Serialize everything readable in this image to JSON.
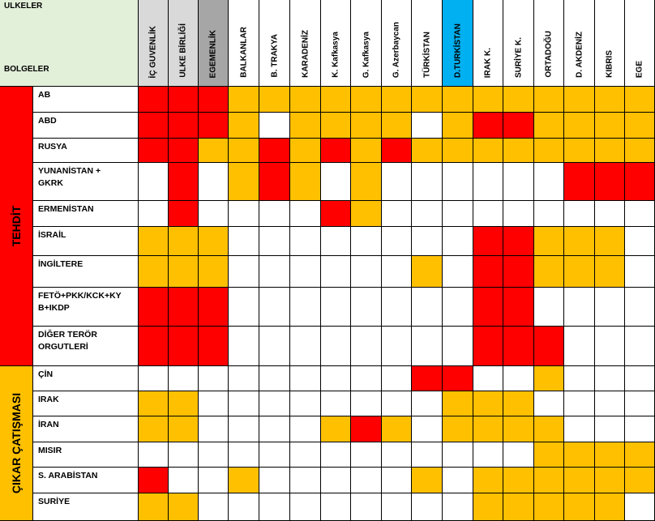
{
  "corner": {
    "top_label": "ULKELER",
    "bottom_label": "BOLGELER"
  },
  "colors": {
    "threat": "#ff0000",
    "interest": "#ffc000",
    "none": "#ffffff",
    "corner_bg": "#e2efd9",
    "grey_header": "#d9d9d9",
    "grey_header_dark": "#a6a6a6",
    "highlight_header": "#00b0f0"
  },
  "columns": [
    "İÇ GUVENLİK",
    "ULKE BİRLİĞİ",
    "EGEMENLİK",
    "BALKANLAR",
    "B. TRAKYA",
    "KARADENİZ",
    "K. Kafkasya",
    "G. Kafkasya",
    "G. Azerbaycan",
    "TÜRKİSTAN",
    "D.TURKİSTAN",
    "IRAK K.",
    "SURİYE K.",
    "ORTADOĞU",
    "D. AKDENİZ",
    "KIBRIS",
    "EGE"
  ],
  "groups": [
    {
      "label": "TEHDİT",
      "color": "red"
    },
    {
      "label": "ÇIKAR ÇATIŞMASI",
      "color": "orange"
    }
  ],
  "rows": [
    {
      "name": "AB",
      "cells": "RRRoooooooooooooo"
    },
    {
      "name": "ABD",
      "cells": "RRRo.oooo.oRRoooo"
    },
    {
      "name": "RUSYA",
      "cells": "RRooRoRoRoooooooo"
    },
    {
      "name": "YUNANİSTAN +\nGKRK",
      "cells": ".R.oRo.o......RRR"
    },
    {
      "name": "ERMENİSTAN",
      "cells": ".R....Ro........."
    },
    {
      "name": "İSRAİL",
      "cells": "ooo........RRooo."
    },
    {
      "name": "İNGİLTERE",
      "cells": "ooo......o.RRooo."
    },
    {
      "name": "FETÖ+PKK/KCK+KY\nB+IKDP",
      "cells": "RRR........RR...."
    },
    {
      "name": "DİĞER TERÖR\nORGUTLERİ",
      "cells": "RRR........RRR..."
    },
    {
      "name": "ÇİN",
      "cells": ".........RR..o..."
    },
    {
      "name": "IRAK",
      "cells": "oo........ooo...."
    },
    {
      "name": "İRAN",
      "cells": "oo....oRo.oooo..."
    },
    {
      "name": "MISIR",
      "cells": ".............oooo"
    },
    {
      "name": "S. ARABİSTAN",
      "cells": "R..o.....o.oooooo"
    },
    {
      "name": "SURİYE",
      "cells": "oo.........ooooo."
    }
  ]
}
